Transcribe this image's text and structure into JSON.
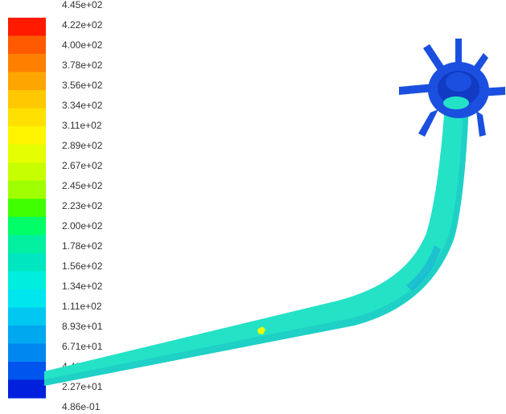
{
  "colorbar": {
    "labels": [
      "4.45e+02",
      "4.22e+02",
      "4.00e+02",
      "3.78e+02",
      "3.56e+02",
      "3.34e+02",
      "3.11e+02",
      "2.89e+02",
      "2.67e+02",
      "2.45e+02",
      "2.23e+02",
      "2.00e+02",
      "1.78e+02",
      "1.56e+02",
      "1.34e+02",
      "1.11e+02",
      "8.93e+01",
      "6.71e+01",
      "4.49e+01",
      "2.27e+01",
      "4.86e-01"
    ],
    "colors": [
      "#ff1a00",
      "#ff5a00",
      "#ff8000",
      "#ffa500",
      "#ffc800",
      "#ffe000",
      "#fff500",
      "#e6ff00",
      "#c8ff00",
      "#a0ff00",
      "#40ff00",
      "#00ff66",
      "#00f0a0",
      "#00e6c0",
      "#00eedd",
      "#00e6ee",
      "#00c8f0",
      "#00a8f0",
      "#0088f0",
      "#0055ee",
      "#0020dd"
    ]
  },
  "geometry_colors": {
    "pipe": "#24e2c6",
    "pipe_shade": "#1fd0c6",
    "pipe_dark": "#16a8d8",
    "hub": "#1a4fe0",
    "hub_dark": "#0d2fb0",
    "hot_spot": "#e8ff00"
  }
}
